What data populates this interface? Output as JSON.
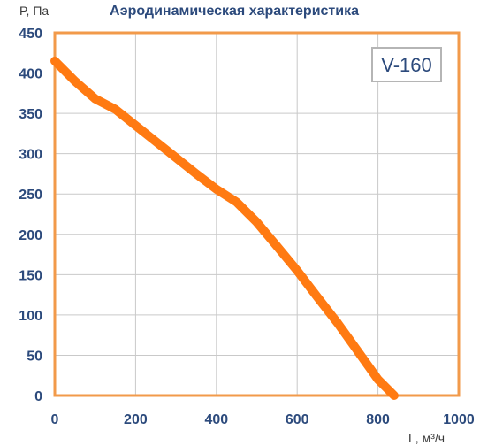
{
  "title": "Аэродинамическая характеристика",
  "model_label": "V-160",
  "colors": {
    "frame": "#f29a4a",
    "curve": "#ff7a12",
    "grid": "#c9c9c9",
    "tick_text": "#2c4a7c",
    "model_box": "#b5b5b5"
  },
  "chart_data": {
    "type": "line",
    "title": "Аэродинамическая характеристика",
    "ylabel": "P, Па",
    "xlabel": "L, м³/ч",
    "xlim": [
      0,
      1000
    ],
    "ylim": [
      0,
      450
    ],
    "x_ticks": [
      0,
      200,
      400,
      600,
      800,
      1000
    ],
    "y_ticks": [
      0,
      50,
      100,
      150,
      200,
      250,
      300,
      350,
      400,
      450
    ],
    "grid": true,
    "series": [
      {
        "x": [
          0,
          50,
          100,
          150,
          200,
          250,
          300,
          350,
          400,
          450,
          500,
          550,
          600,
          650,
          700,
          750,
          800,
          840
        ],
        "y": [
          415,
          390,
          368,
          355,
          335,
          315,
          295,
          275,
          256,
          240,
          215,
          185,
          155,
          122,
          90,
          55,
          20,
          0
        ]
      }
    ]
  }
}
